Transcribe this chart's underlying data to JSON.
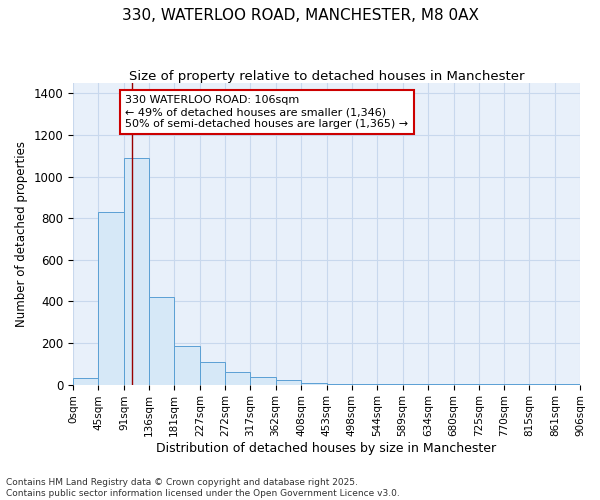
{
  "title": "330, WATERLOO ROAD, MANCHESTER, M8 0AX",
  "subtitle": "Size of property relative to detached houses in Manchester",
  "xlabel": "Distribution of detached houses by size in Manchester",
  "ylabel": "Number of detached properties",
  "bar_edges": [
    0,
    45,
    91,
    136,
    181,
    227,
    272,
    317,
    362,
    408,
    453,
    498,
    544,
    589,
    634,
    680,
    725,
    770,
    815,
    861,
    906
  ],
  "bar_heights": [
    30,
    830,
    1090,
    420,
    185,
    110,
    60,
    35,
    20,
    10,
    5,
    5,
    5,
    5,
    5,
    5,
    5,
    5,
    5,
    5
  ],
  "tick_labels": [
    "0sqm",
    "45sqm",
    "91sqm",
    "136sqm",
    "181sqm",
    "227sqm",
    "272sqm",
    "317sqm",
    "362sqm",
    "408sqm",
    "453sqm",
    "498sqm",
    "544sqm",
    "589sqm",
    "634sqm",
    "680sqm",
    "725sqm",
    "770sqm",
    "815sqm",
    "861sqm",
    "906sqm"
  ],
  "bar_facecolor": "#d6e8f7",
  "bar_edgecolor": "#5a9fd4",
  "grid_color": "#c8d8ed",
  "background_color": "#e8f0fa",
  "vline_x": 106,
  "vline_color": "#990000",
  "annotation_text": "330 WATERLOO ROAD: 106sqm\n← 49% of detached houses are smaller (1,346)\n50% of semi-detached houses are larger (1,365) →",
  "annotation_box_color": "#cc0000",
  "ylim": [
    0,
    1450
  ],
  "yticks": [
    0,
    200,
    400,
    600,
    800,
    1000,
    1200,
    1400
  ],
  "footnote": "Contains HM Land Registry data © Crown copyright and database right 2025.\nContains public sector information licensed under the Open Government Licence v3.0.",
  "title_fontsize": 11,
  "subtitle_fontsize": 9.5,
  "xlabel_fontsize": 9,
  "ylabel_fontsize": 8.5,
  "tick_fontsize": 7.5,
  "annot_fontsize": 8,
  "footnote_fontsize": 6.5
}
